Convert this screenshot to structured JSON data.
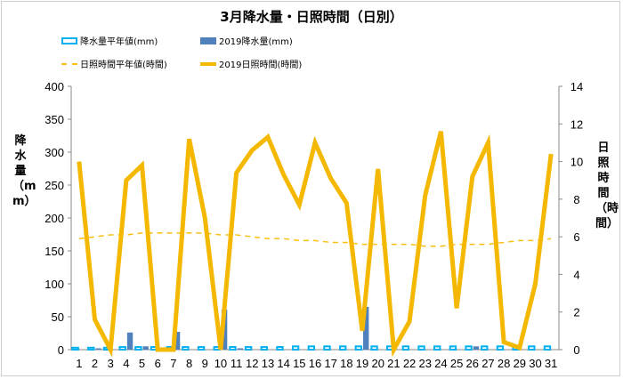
{
  "title": "3月降水量・日照時間（日別）",
  "legend": {
    "avg_rain": "降水量平年値(mm)",
    "rain": "2019降水量(mm)",
    "avg_sun": "日照時間平年値(時間)",
    "sun": "2019日照時間(時間)"
  },
  "colors": {
    "avg_rain": "#00b0f0",
    "rain": "#4f81bd",
    "avg_sun": "#fbbf14",
    "sun": "#f5b800"
  },
  "chart_data": {
    "type": "bar",
    "title": "3月降水量・日照時間（日別）",
    "x": [
      1,
      2,
      3,
      4,
      5,
      6,
      7,
      8,
      9,
      10,
      11,
      12,
      13,
      14,
      15,
      16,
      17,
      18,
      19,
      20,
      21,
      22,
      23,
      24,
      25,
      26,
      27,
      28,
      29,
      30,
      31
    ],
    "y_left": {
      "label": "降水量（mm）",
      "lim": [
        0,
        400
      ],
      "ticks": [
        0,
        50,
        100,
        150,
        200,
        250,
        300,
        350,
        400
      ]
    },
    "y_right": {
      "label": "日照時間（時間）",
      "lim": [
        0,
        14
      ],
      "ticks": [
        0,
        2,
        4,
        6,
        8,
        10,
        12,
        14
      ]
    },
    "grid": false,
    "legend_position": "top",
    "series": [
      {
        "name": "降水量平年値(mm)",
        "type": "bar-outline",
        "axis": "left",
        "values": [
          3,
          3,
          3,
          4,
          4,
          4,
          4,
          4,
          4,
          4,
          4,
          4,
          4,
          4,
          5,
          5,
          5,
          5,
          5,
          5,
          5,
          5,
          5,
          5,
          5,
          5,
          5,
          5,
          5,
          5,
          5
        ]
      },
      {
        "name": "2019降水量(mm)",
        "type": "bar",
        "axis": "left",
        "values": [
          0,
          2,
          0,
          26,
          5,
          0,
          27,
          0,
          0,
          61,
          2,
          0,
          0,
          0,
          0,
          0,
          0,
          0,
          65,
          0,
          0,
          0,
          0,
          0,
          0,
          5,
          0,
          0,
          0,
          0,
          0
        ]
      },
      {
        "name": "日照時間平年値(時間)",
        "type": "line-dashed",
        "axis": "right",
        "values": [
          5.9,
          6.0,
          6.1,
          6.1,
          6.2,
          6.2,
          6.2,
          6.2,
          6.2,
          6.1,
          6.1,
          6.0,
          5.9,
          5.9,
          5.8,
          5.8,
          5.7,
          5.7,
          5.6,
          5.6,
          5.6,
          5.6,
          5.5,
          5.5,
          5.6,
          5.6,
          5.6,
          5.7,
          5.8,
          5.8,
          5.9
        ]
      },
      {
        "name": "2019日照時間(時間)",
        "type": "line",
        "axis": "right",
        "values": [
          10.0,
          1.6,
          0.0,
          9.0,
          9.8,
          0.0,
          0.0,
          11.2,
          7.0,
          0.0,
          9.4,
          10.6,
          11.3,
          9.3,
          7.7,
          11.0,
          9.1,
          7.8,
          1.0,
          9.6,
          0.0,
          1.5,
          8.2,
          11.6,
          2.2,
          9.2,
          11.0,
          0.4,
          0.1,
          3.5,
          10.4
        ]
      }
    ]
  }
}
